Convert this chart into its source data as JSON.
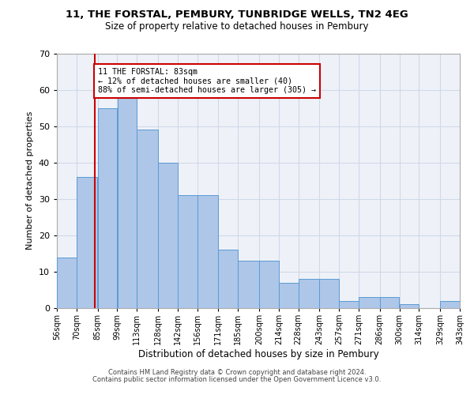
{
  "title1": "11, THE FORSTAL, PEMBURY, TUNBRIDGE WELLS, TN2 4EG",
  "title2": "Size of property relative to detached houses in Pembury",
  "xlabel": "Distribution of detached houses by size in Pembury",
  "ylabel": "Number of detached properties",
  "annotation_line1": "11 THE FORSTAL: 83sqm",
  "annotation_line2": "← 12% of detached houses are smaller (40)",
  "annotation_line3": "88% of semi-detached houses are larger (305) →",
  "property_size": 83,
  "bin_edges": [
    56,
    70,
    85,
    99,
    113,
    128,
    142,
    156,
    171,
    185,
    200,
    214,
    228,
    243,
    257,
    271,
    286,
    300,
    314,
    329,
    343
  ],
  "bin_labels": [
    "56sqm",
    "70sqm",
    "85sqm",
    "99sqm",
    "113sqm",
    "128sqm",
    "142sqm",
    "156sqm",
    "171sqm",
    "185sqm",
    "200sqm",
    "214sqm",
    "228sqm",
    "243sqm",
    "257sqm",
    "271sqm",
    "286sqm",
    "300sqm",
    "314sqm",
    "329sqm",
    "343sqm"
  ],
  "bar_heights": [
    14,
    36,
    55,
    58,
    49,
    40,
    31,
    31,
    16,
    13,
    13,
    7,
    8,
    8,
    2,
    3,
    3,
    1,
    0,
    2
  ],
  "bar_color": "#aec6e8",
  "bar_edge_color": "#5b9bd5",
  "vline_x": 83,
  "vline_color": "#cc0000",
  "annotation_box_color": "#cc0000",
  "ylim": [
    0,
    70
  ],
  "yticks": [
    0,
    10,
    20,
    30,
    40,
    50,
    60,
    70
  ],
  "grid_color": "#d0d8e8",
  "bg_color": "#eef2f8",
  "footer1": "Contains HM Land Registry data © Crown copyright and database right 2024.",
  "footer2": "Contains public sector information licensed under the Open Government Licence v3.0."
}
